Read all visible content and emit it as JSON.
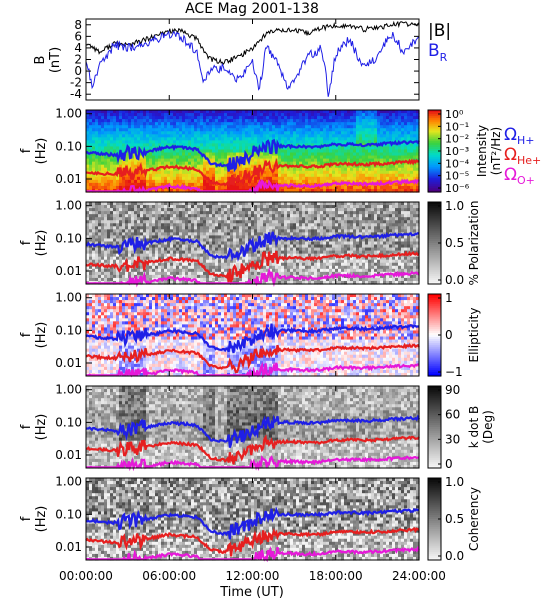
{
  "chart_data": [
    {
      "type": "line",
      "title": "ACE Mag 2001-138",
      "ylabel_lines": [
        "B",
        "(nT)"
      ],
      "yticks": [
        "8",
        "6",
        "4",
        "2",
        "0",
        "-2",
        "-4"
      ],
      "ylim": [
        -5,
        9
      ],
      "legend": {
        "total": "|B|",
        "radial": "B",
        "radial_sub": "R"
      },
      "series": [
        {
          "name": "|B|",
          "color": "#000000",
          "x": [
            0,
            0.5,
            1,
            2,
            3,
            4,
            5,
            6,
            7,
            8,
            8.5,
            9,
            10,
            11,
            12,
            13,
            14,
            15,
            16,
            17,
            18,
            19,
            20,
            21,
            22,
            23,
            24
          ],
          "values": [
            4.8,
            4.2,
            3.2,
            4.8,
            4.5,
            5.2,
            6.0,
            7.0,
            6.8,
            5.5,
            3.5,
            2.0,
            1.5,
            2.5,
            4.0,
            6.5,
            7.2,
            7.0,
            6.5,
            7.5,
            7.8,
            7.8,
            7.2,
            7.5,
            8.0,
            8.2,
            8.0
          ]
        },
        {
          "name": "B_R",
          "color": "#1f1fe6",
          "x": [
            0,
            0.4,
            0.8,
            1,
            1.5,
            2,
            3,
            4,
            5,
            6,
            7,
            7.5,
            8,
            8.5,
            9,
            10,
            11,
            12,
            12.5,
            13,
            14,
            14.5,
            15,
            16,
            17,
            17.5,
            18,
            19,
            20,
            21,
            22,
            23,
            24
          ],
          "values": [
            2.0,
            -2.5,
            -0.5,
            1.5,
            2.5,
            4.5,
            4.0,
            4.5,
            5.5,
            6.5,
            5.5,
            4.5,
            3.5,
            -2.0,
            0.5,
            0.5,
            -1.5,
            1.5,
            -3.0,
            4.5,
            0.5,
            -2.5,
            -1.5,
            2.5,
            4.0,
            -4.5,
            3.0,
            5.5,
            0.5,
            2.5,
            6.5,
            3.0,
            6.0
          ]
        }
      ]
    },
    {
      "type": "heatmap",
      "quantity": "Intensity",
      "ylabel_lines": [
        "f",
        "(Hz)"
      ],
      "yticks": [
        "1.00",
        "0.10",
        "0.01"
      ],
      "colorbar": {
        "label_lines": [
          "Intensity",
          "(nT²/Hz)"
        ],
        "ticks": [
          "10⁰",
          "10⁻¹",
          "10⁻²",
          "10⁻³",
          "10⁻⁴",
          "10⁻⁵",
          "10⁻⁶"
        ]
      },
      "side_labels": [
        {
          "symbol": "Ω",
          "sub": "H+",
          "color": "#1f1fe6"
        },
        {
          "symbol": "Ω",
          "sub": "He+",
          "color": "#e61f1f"
        },
        {
          "symbol": "Ω",
          "sub": "O+",
          "color": "#e619d9"
        }
      ]
    },
    {
      "type": "heatmap",
      "quantity": "% Polarization",
      "ylabel_lines": [
        "f",
        "(Hz)"
      ],
      "yticks": [
        "1.00",
        "0.10",
        "0.01"
      ],
      "colorbar": {
        "label_lines": [
          "% Polarization"
        ],
        "ticks": [
          "1.0",
          "0.5",
          "0.0"
        ]
      }
    },
    {
      "type": "heatmap",
      "quantity": "Ellipticity",
      "ylabel_lines": [
        "f",
        "(Hz)"
      ],
      "yticks": [
        "1.00",
        "0.10",
        "0.01"
      ],
      "colorbar": {
        "label_lines": [
          "Ellipticity"
        ],
        "ticks": [
          "1",
          "0",
          "−1"
        ]
      }
    },
    {
      "type": "heatmap",
      "quantity": "k dot B",
      "ylabel_lines": [
        "f",
        "(Hz)"
      ],
      "yticks": [
        "1.00",
        "0.10",
        "0.01"
      ],
      "colorbar": {
        "label_lines": [
          "k dot B",
          "(Deg)"
        ],
        "ticks": [
          "90",
          "60",
          "30",
          "0"
        ]
      }
    },
    {
      "type": "heatmap",
      "quantity": "Coherency",
      "ylabel_lines": [
        "f",
        "(Hz)"
      ],
      "yticks": [
        "1.00",
        "0.10",
        "0.01"
      ],
      "colorbar": {
        "label_lines": [
          "Coherency"
        ],
        "ticks": [
          "1.0",
          "0.5",
          "0.0"
        ]
      },
      "xlabel": "Time (UT)",
      "xticks": [
        "00:00:00",
        "06:00:00",
        "12:00:00",
        "18:00:00",
        "24:00:00"
      ]
    }
  ],
  "gyrofrequency_lines": [
    {
      "name": "H+",
      "color": "#1f1fe6",
      "x": [
        0,
        1,
        2,
        3,
        4,
        5,
        6,
        7,
        8,
        8.5,
        9,
        10,
        11,
        12,
        13,
        14,
        15,
        16,
        17,
        18,
        19,
        20,
        21,
        22,
        23,
        24
      ],
      "f": [
        0.065,
        0.06,
        0.055,
        0.06,
        0.068,
        0.08,
        0.095,
        0.09,
        0.08,
        0.05,
        0.03,
        0.025,
        0.035,
        0.06,
        0.095,
        0.1,
        0.1,
        0.095,
        0.1,
        0.115,
        0.115,
        0.11,
        0.115,
        0.125,
        0.13,
        0.135
      ]
    },
    {
      "name": "He+",
      "color": "#e61f1f",
      "x": [
        0,
        1,
        2,
        3,
        4,
        5,
        6,
        7,
        8,
        8.5,
        9,
        10,
        11,
        12,
        13,
        14,
        15,
        16,
        17,
        18,
        19,
        20,
        21,
        22,
        23,
        24
      ],
      "f": [
        0.016,
        0.015,
        0.014,
        0.015,
        0.017,
        0.02,
        0.024,
        0.022,
        0.02,
        0.013,
        0.008,
        0.007,
        0.009,
        0.015,
        0.024,
        0.025,
        0.025,
        0.024,
        0.025,
        0.029,
        0.029,
        0.028,
        0.029,
        0.031,
        0.033,
        0.034
      ]
    },
    {
      "name": "O+",
      "color": "#e619d9",
      "x": [
        0,
        1,
        2,
        3,
        4,
        5,
        6,
        7,
        8,
        8.5,
        9,
        10,
        11,
        12,
        13,
        14,
        15,
        16,
        17,
        18,
        19,
        20,
        21,
        22,
        23,
        24
      ],
      "f": [
        0.0041,
        0.0038,
        0.0035,
        0.0038,
        0.0043,
        0.005,
        0.006,
        0.0056,
        0.005,
        0.0033,
        0.0022,
        0.002,
        0.0023,
        0.0038,
        0.006,
        0.0063,
        0.0063,
        0.006,
        0.0063,
        0.0072,
        0.0072,
        0.007,
        0.0072,
        0.0078,
        0.0082,
        0.0085
      ]
    }
  ],
  "colors": {
    "frame": "#000000",
    "background": "#ffffff"
  }
}
